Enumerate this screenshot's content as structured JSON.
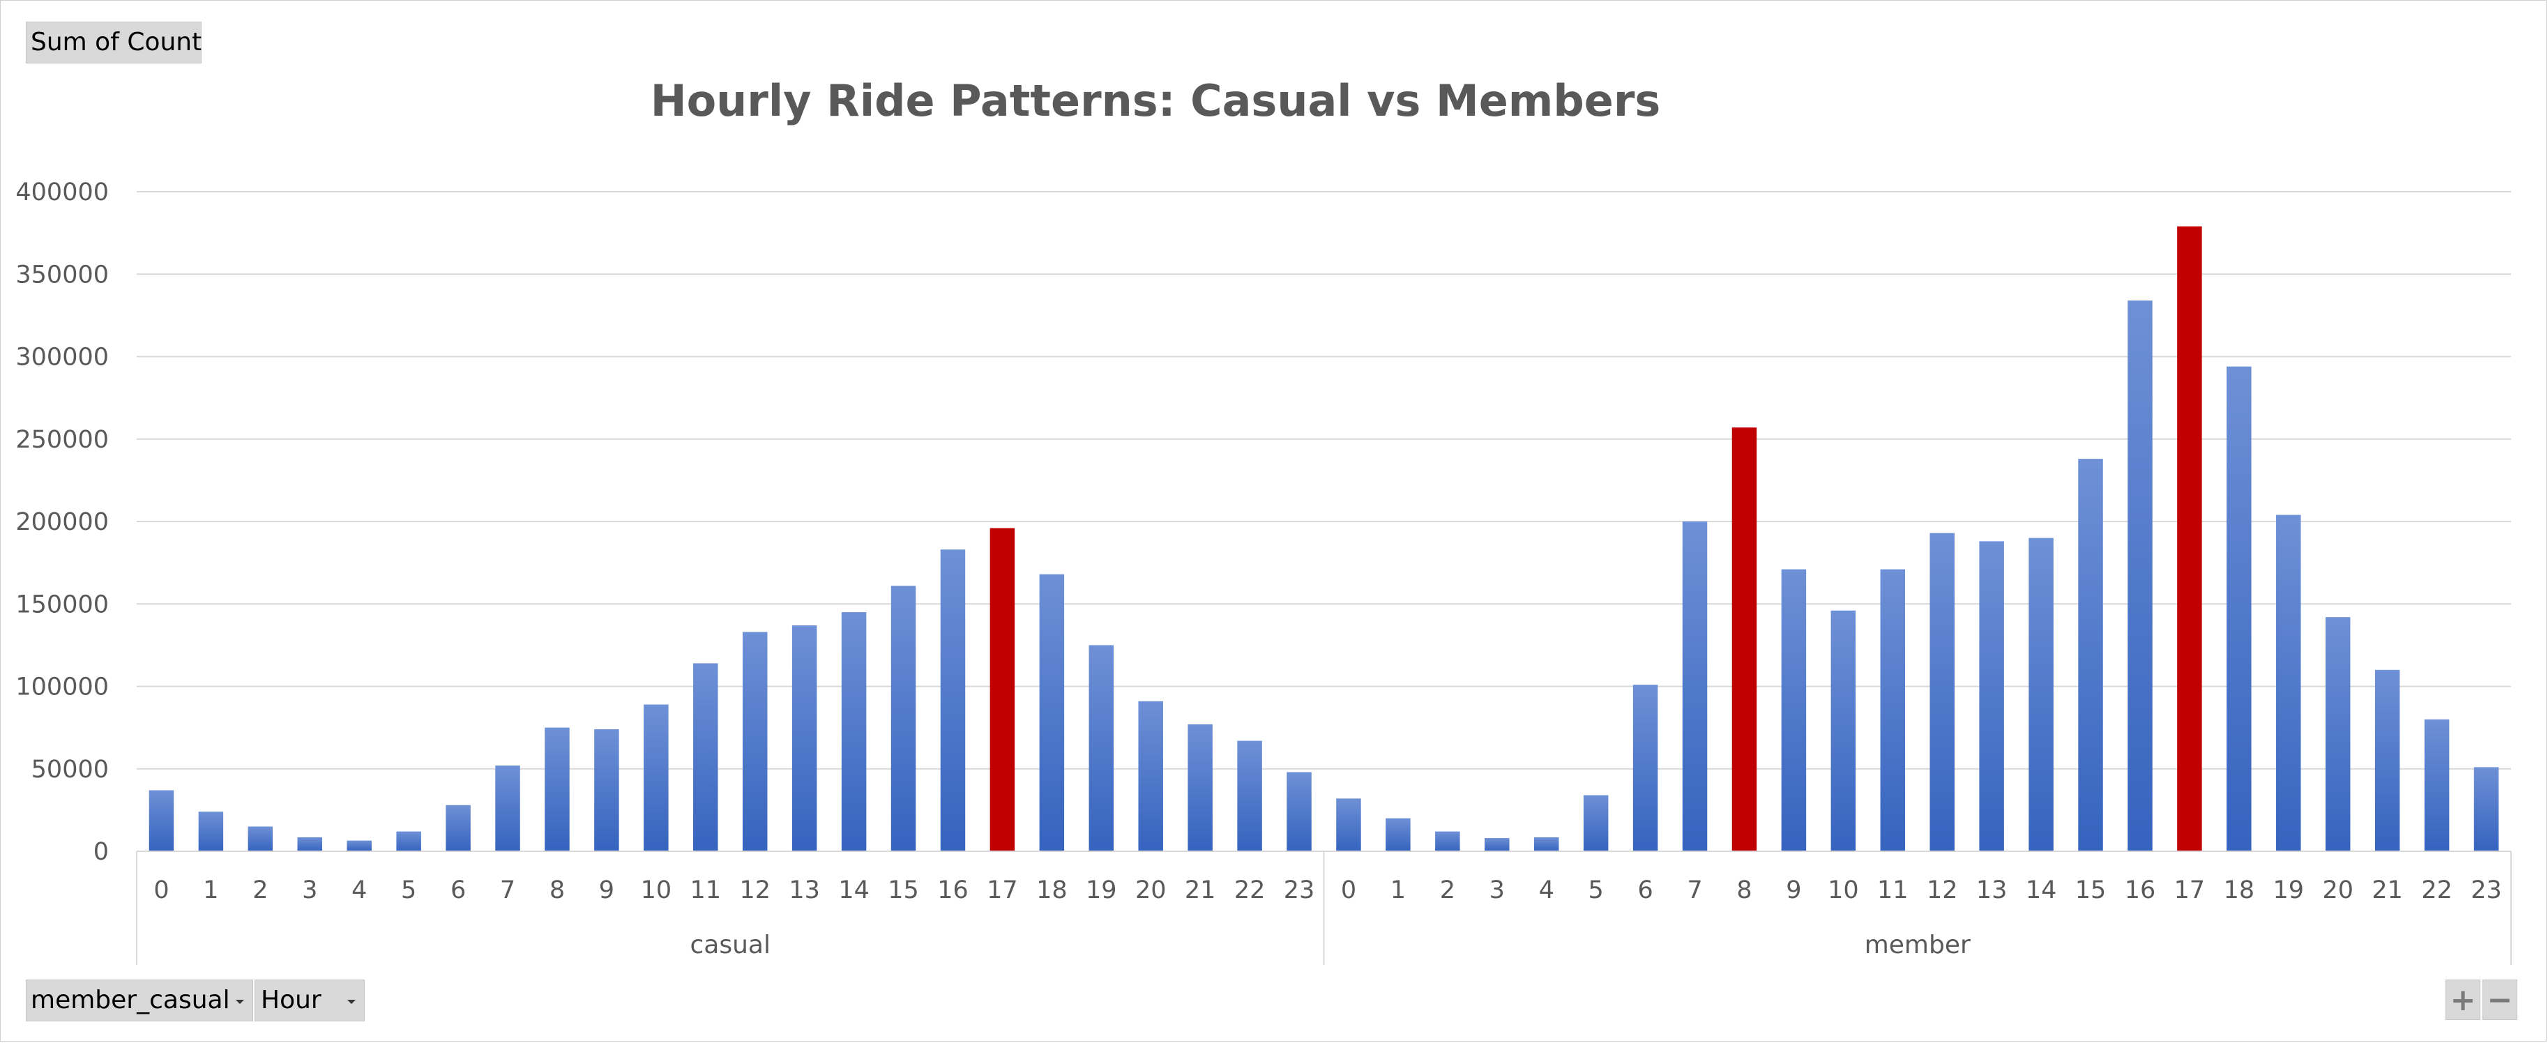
{
  "pivot": {
    "value_field": "Sum of Count",
    "row_fields": [
      "member_casual",
      "Hour"
    ]
  },
  "zoom": {
    "plus": "+",
    "minus": "−"
  },
  "colors": {
    "bar_default": "#4472c4",
    "bar_highlight": "#c00000",
    "gridline": "#d9d9d9",
    "text": "#595959"
  },
  "chart_data": {
    "type": "bar",
    "title": "Hourly Ride Patterns: Casual vs Members",
    "xlabel": "",
    "ylabel": "",
    "ylim": [
      0,
      400000
    ],
    "yticks": [
      0,
      50000,
      100000,
      150000,
      200000,
      250000,
      300000,
      350000,
      400000
    ],
    "grid": true,
    "legend": "none",
    "groups": [
      {
        "name": "casual",
        "categories": [
          "0",
          "1",
          "2",
          "3",
          "4",
          "5",
          "6",
          "7",
          "8",
          "9",
          "10",
          "11",
          "12",
          "13",
          "14",
          "15",
          "16",
          "17",
          "18",
          "19",
          "20",
          "21",
          "22",
          "23"
        ],
        "values": [
          37000,
          24000,
          15000,
          8500,
          6500,
          12000,
          28000,
          52000,
          75000,
          74000,
          89000,
          114000,
          133000,
          137000,
          145000,
          161000,
          183000,
          196000,
          168000,
          125000,
          91000,
          77000,
          67000,
          48000
        ],
        "highlight": [
          "17"
        ]
      },
      {
        "name": "member",
        "categories": [
          "0",
          "1",
          "2",
          "3",
          "4",
          "5",
          "6",
          "7",
          "8",
          "9",
          "10",
          "11",
          "12",
          "13",
          "14",
          "15",
          "16",
          "17",
          "18",
          "19",
          "20",
          "21",
          "22",
          "23"
        ],
        "values": [
          32000,
          20000,
          12000,
          8000,
          8500,
          34000,
          101000,
          200000,
          257000,
          171000,
          146000,
          171000,
          193000,
          188000,
          190000,
          238000,
          334000,
          379000,
          294000,
          204000,
          142000,
          110000,
          80000,
          51000
        ],
        "highlight": [
          "8",
          "17"
        ]
      }
    ]
  }
}
